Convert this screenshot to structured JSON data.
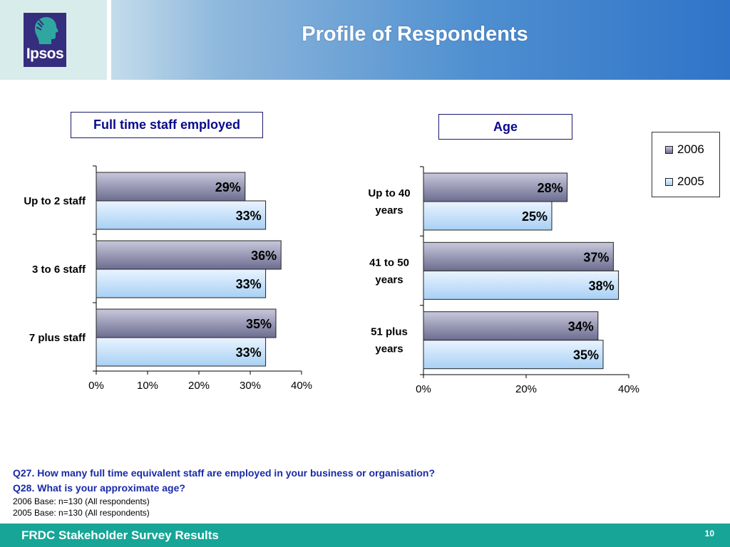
{
  "header": {
    "title": "Profile of Respondents",
    "logo_text": "Ipsos"
  },
  "legend": [
    {
      "name": "2006",
      "color": "#8a8aa8"
    },
    {
      "name": "2005",
      "color": "#c8e0f8"
    }
  ],
  "chart_data": [
    {
      "type": "bar",
      "orientation": "horizontal",
      "title": "Full time staff employed",
      "categories": [
        "Up to 2 staff",
        "3 to 6 staff",
        "7 plus staff"
      ],
      "series": [
        {
          "name": "2006",
          "values": [
            29,
            36,
            35
          ],
          "labels": [
            "29%",
            "36%",
            "35%"
          ]
        },
        {
          "name": "2005",
          "values": [
            33,
            33,
            33
          ],
          "labels": [
            "33%",
            "33%",
            "33%"
          ]
        }
      ],
      "xlim": [
        0,
        40
      ],
      "ticks": [
        "0%",
        "10%",
        "20%",
        "30%",
        "40%"
      ],
      "legend": "none"
    },
    {
      "type": "bar",
      "orientation": "horizontal",
      "title": "Age",
      "categories": [
        [
          "Up to 40",
          "years"
        ],
        [
          "41 to 50",
          "years"
        ],
        [
          "51 plus",
          "years"
        ]
      ],
      "series": [
        {
          "name": "2006",
          "values": [
            28,
            37,
            34
          ],
          "labels": [
            "28%",
            "37%",
            "34%"
          ]
        },
        {
          "name": "2005",
          "values": [
            25,
            38,
            35
          ],
          "labels": [
            "25%",
            "38%",
            "35%"
          ]
        }
      ],
      "xlim": [
        0,
        40
      ],
      "ticks": [
        "0%",
        "20%",
        "40%"
      ],
      "legend": "top-right"
    }
  ],
  "footnotes": {
    "q27": "Q27. How many full time equivalent staff are employed in your business or organisation?",
    "q28": "Q28. What is your approximate age?",
    "base2006": "2006 Base: n=130 (All respondents)",
    "base2005": "2005 Base: n=130 (All respondents)"
  },
  "footer": {
    "text": "FRDC Stakeholder Survey Results",
    "page": "10"
  },
  "colors": {
    "footer_bg": "#16a596",
    "title_text": "#0a0a8c",
    "question_text": "#1a2aa8"
  }
}
